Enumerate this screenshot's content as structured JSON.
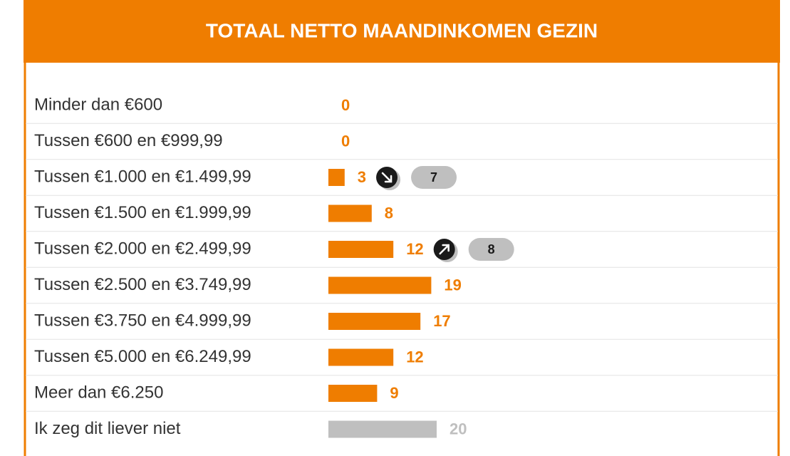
{
  "chart_data": {
    "type": "bar",
    "orientation": "horizontal",
    "title": "TOTAAL NETTO MAANDINKOMEN GEZIN",
    "categories": [
      "Minder dan €600",
      "Tussen €600 en €999,99",
      "Tussen €1.000 en €1.499,99",
      "Tussen €1.500 en €1.999,99",
      "Tussen €2.000 en €2.499,99",
      "Tussen €2.500 en €3.749,99",
      "Tussen €3.750 en €4.999,99",
      "Tussen €5.000 en €6.249,99",
      "Meer dan €6.250",
      "Ik zeg dit liever niet"
    ],
    "values": [
      0,
      0,
      3,
      8,
      12,
      19,
      17,
      12,
      9,
      20
    ],
    "colors": [
      "#ef7d00",
      "#ef7d00",
      "#ef7d00",
      "#ef7d00",
      "#ef7d00",
      "#ef7d00",
      "#ef7d00",
      "#ef7d00",
      "#ef7d00",
      "#bfbfbf"
    ],
    "trend": [
      null,
      null,
      "down",
      null,
      "up",
      null,
      null,
      null,
      null,
      null
    ],
    "previous_values": [
      null,
      null,
      7,
      null,
      8,
      null,
      null,
      null,
      null,
      null
    ],
    "xlim": [
      0,
      20
    ]
  }
}
